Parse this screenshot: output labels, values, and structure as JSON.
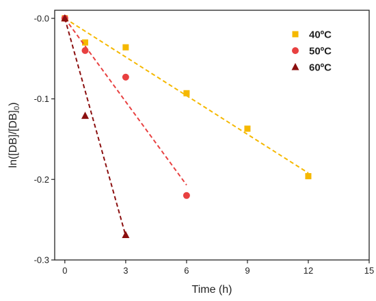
{
  "chart_data": {
    "type": "scatter",
    "xlabel": "Time (h)",
    "ylabel": {
      "main": "ln([DB]/[DB]",
      "sub": "0",
      "end": ")"
    },
    "xlim": [
      -0.5,
      15
    ],
    "ylim": [
      -0.3,
      0.01
    ],
    "x_ticks": [
      0,
      3,
      6,
      9,
      12,
      15
    ],
    "x_tick_labels": [
      "0",
      "3",
      "6",
      "9",
      "12",
      "15"
    ],
    "y_ticks": [
      0,
      -0.1,
      -0.2,
      -0.3
    ],
    "y_tick_labels": [
      "-0.0",
      "-0.1",
      "-0.2",
      "-0.3"
    ],
    "grid": false,
    "legend_position": "top-right",
    "series": [
      {
        "name": "40ºC",
        "color": "#F5B800",
        "marker": "square",
        "x": [
          0,
          1,
          3,
          6,
          9,
          12
        ],
        "y": [
          0,
          -0.03,
          -0.036,
          -0.093,
          -0.137,
          -0.196
        ],
        "fit": {
          "x": [
            0,
            12
          ],
          "y": [
            0,
            -0.192
          ]
        }
      },
      {
        "name": "50ºC",
        "color": "#E84040",
        "marker": "circle",
        "x": [
          0,
          1,
          3,
          6
        ],
        "y": [
          0,
          -0.04,
          -0.073,
          -0.22
        ],
        "fit": {
          "x": [
            0,
            6
          ],
          "y": [
            0,
            -0.207
          ]
        }
      },
      {
        "name": "60ºC",
        "color": "#8B0F0F",
        "marker": "triangle",
        "x": [
          0,
          1,
          3
        ],
        "y": [
          0,
          -0.121,
          -0.269
        ],
        "fit": {
          "x": [
            0,
            3
          ],
          "y": [
            0,
            -0.27
          ]
        }
      }
    ]
  }
}
